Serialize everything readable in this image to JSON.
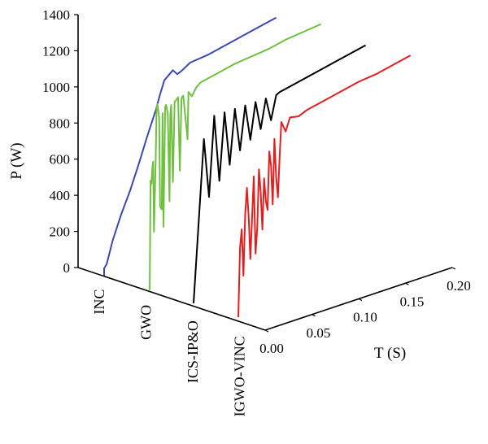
{
  "chart_data": {
    "type": "line",
    "projection": "3d-waterfall",
    "title": "",
    "ylabel": "P (W)",
    "xlabel": "T (S)",
    "ylim": [
      0,
      1400
    ],
    "xlim": [
      0,
      0.2
    ],
    "y_ticks": [
      "0",
      "200",
      "400",
      "600",
      "800",
      "1000",
      "1200",
      "1400"
    ],
    "x_ticks": [
      "0.00",
      "0.05",
      "0.10",
      "0.15",
      "0.20"
    ],
    "grid": false,
    "legend": "none",
    "series": [
      {
        "name": "INC",
        "color": "#3a48b0",
        "points": [
          [
            0,
            0
          ],
          [
            0,
            40
          ],
          [
            0.003,
            60
          ],
          [
            0.01,
            180
          ],
          [
            0.02,
            310
          ],
          [
            0.03,
            420
          ],
          [
            0.04,
            550
          ],
          [
            0.05,
            690
          ],
          [
            0.06,
            820
          ],
          [
            0.065,
            900
          ],
          [
            0.07,
            970
          ],
          [
            0.08,
            1010
          ],
          [
            0.085,
            980
          ],
          [
            0.09,
            990
          ],
          [
            0.1,
            1020
          ],
          [
            0.12,
            1030
          ],
          [
            0.14,
            1050
          ],
          [
            0.16,
            1070
          ],
          [
            0.18,
            1090
          ],
          [
            0.2,
            1110
          ]
        ]
      },
      {
        "name": "GWO",
        "color": "#6fc040",
        "points": [
          [
            0,
            0
          ],
          [
            0.001,
            0
          ],
          [
            0.002,
            600
          ],
          [
            0.003,
            580
          ],
          [
            0.004,
            660
          ],
          [
            0.005,
            700
          ],
          [
            0.006,
            310
          ],
          [
            0.008,
            720
          ],
          [
            0.009,
            990
          ],
          [
            0.01,
            1010
          ],
          [
            0.012,
            930
          ],
          [
            0.013,
            440
          ],
          [
            0.015,
            420
          ],
          [
            0.016,
            950
          ],
          [
            0.017,
            320
          ],
          [
            0.019,
            980
          ],
          [
            0.02,
            990
          ],
          [
            0.022,
            940
          ],
          [
            0.024,
            450
          ],
          [
            0.025,
            930
          ],
          [
            0.026,
            980
          ],
          [
            0.028,
            550
          ],
          [
            0.03,
            990
          ],
          [
            0.032,
            1000
          ],
          [
            0.034,
            1010
          ],
          [
            0.036,
            600
          ],
          [
            0.038,
            1000
          ],
          [
            0.04,
            1010
          ],
          [
            0.045,
            760
          ],
          [
            0.046,
            1020
          ],
          [
            0.05,
            990
          ],
          [
            0.055,
            1030
          ],
          [
            0.06,
            1050
          ],
          [
            0.08,
            1070
          ],
          [
            0.1,
            1090
          ],
          [
            0.12,
            1100
          ],
          [
            0.14,
            1110
          ],
          [
            0.16,
            1130
          ],
          [
            0.18,
            1140
          ],
          [
            0.2,
            1150
          ]
        ]
      },
      {
        "name": "ICS-IP&O",
        "color": "#000000",
        "points": [
          [
            0,
            0
          ],
          [
            0.012,
            890
          ],
          [
            0.018,
            560
          ],
          [
            0.024,
            1000
          ],
          [
            0.03,
            630
          ],
          [
            0.036,
            1000
          ],
          [
            0.042,
            700
          ],
          [
            0.048,
            1000
          ],
          [
            0.054,
            760
          ],
          [
            0.06,
            1000
          ],
          [
            0.066,
            800
          ],
          [
            0.072,
            1000
          ],
          [
            0.078,
            840
          ],
          [
            0.084,
            1000
          ],
          [
            0.09,
            870
          ],
          [
            0.096,
            1000
          ],
          [
            0.1,
            1010
          ],
          [
            0.12,
            1030
          ],
          [
            0.14,
            1050
          ],
          [
            0.16,
            1070
          ],
          [
            0.18,
            1090
          ],
          [
            0.2,
            1110
          ]
        ]
      },
      {
        "name": "IGWO-VINC",
        "color": "#e02020",
        "points": [
          [
            0,
            0
          ],
          [
            0.002,
            380
          ],
          [
            0.004,
            480
          ],
          [
            0.006,
            220
          ],
          [
            0.008,
            560
          ],
          [
            0.01,
            700
          ],
          [
            0.012,
            540
          ],
          [
            0.014,
            300
          ],
          [
            0.016,
            520
          ],
          [
            0.018,
            750
          ],
          [
            0.02,
            320
          ],
          [
            0.022,
            460
          ],
          [
            0.024,
            780
          ],
          [
            0.026,
            650
          ],
          [
            0.028,
            440
          ],
          [
            0.03,
            720
          ],
          [
            0.032,
            590
          ],
          [
            0.034,
            540
          ],
          [
            0.036,
            860
          ],
          [
            0.038,
            780
          ],
          [
            0.04,
            560
          ],
          [
            0.042,
            920
          ],
          [
            0.044,
            700
          ],
          [
            0.046,
            590
          ],
          [
            0.048,
            810
          ],
          [
            0.05,
            1000
          ],
          [
            0.055,
            940
          ],
          [
            0.06,
            1010
          ],
          [
            0.07,
            1000
          ],
          [
            0.08,
            1020
          ],
          [
            0.1,
            1040
          ],
          [
            0.12,
            1060
          ],
          [
            0.14,
            1080
          ],
          [
            0.16,
            1090
          ],
          [
            0.18,
            1110
          ],
          [
            0.2,
            1130
          ]
        ]
      }
    ]
  }
}
